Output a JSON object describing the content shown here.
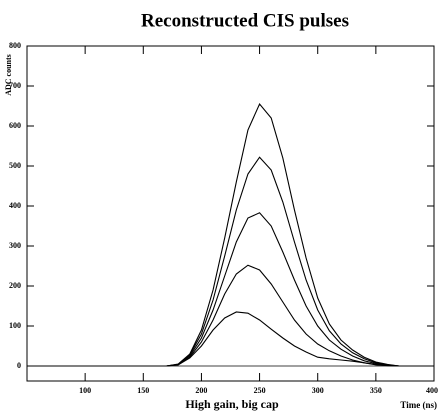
{
  "chart_data": {
    "type": "line",
    "title": "Reconstructed CIS pulses",
    "ylabel": "ADC counts",
    "xlabel": "High gain, big cap",
    "xlabel_right": "Time (ns)",
    "x": [
      50,
      60,
      70,
      80,
      90,
      100,
      110,
      120,
      130,
      140,
      150,
      160,
      170,
      180,
      190,
      200,
      210,
      220,
      230,
      240,
      250,
      260,
      270,
      280,
      290,
      300,
      310,
      320,
      330,
      340,
      350,
      360,
      370,
      380,
      390,
      400
    ],
    "series": [
      {
        "color": "#000000",
        "values": [
          0,
          0,
          0,
          0,
          0,
          0,
          0,
          0,
          0,
          0,
          0,
          0,
          0,
          5,
          30,
          90,
          190,
          320,
          460,
          590,
          655,
          620,
          520,
          390,
          270,
          170,
          105,
          65,
          40,
          22,
          10,
          4,
          0,
          0,
          0,
          0
        ]
      },
      {
        "color": "#000000",
        "values": [
          0,
          0,
          0,
          0,
          0,
          0,
          0,
          0,
          0,
          0,
          0,
          0,
          0,
          4,
          28,
          80,
          165,
          275,
          390,
          480,
          522,
          490,
          410,
          310,
          215,
          140,
          88,
          55,
          33,
          18,
          8,
          3,
          0,
          0,
          0,
          0
        ]
      },
      {
        "color": "#000000",
        "values": [
          0,
          0,
          0,
          0,
          0,
          0,
          0,
          0,
          0,
          0,
          0,
          0,
          0,
          4,
          25,
          70,
          140,
          225,
          310,
          370,
          383,
          350,
          285,
          215,
          150,
          100,
          65,
          42,
          25,
          13,
          6,
          2,
          0,
          0,
          0,
          0
        ]
      },
      {
        "color": "#000000",
        "values": [
          0,
          0,
          0,
          0,
          0,
          0,
          0,
          0,
          0,
          0,
          0,
          0,
          0,
          3,
          22,
          60,
          115,
          180,
          230,
          252,
          240,
          205,
          160,
          115,
          80,
          55,
          38,
          25,
          15,
          8,
          4,
          1,
          0,
          0,
          0,
          0
        ]
      },
      {
        "color": "#000000",
        "values": [
          0,
          0,
          0,
          0,
          0,
          0,
          0,
          0,
          0,
          0,
          0,
          0,
          0,
          3,
          20,
          50,
          90,
          120,
          135,
          132,
          115,
          92,
          70,
          50,
          35,
          22,
          18,
          15,
          12,
          8,
          3,
          1,
          0,
          0,
          0,
          0
        ]
      }
    ],
    "xlim": [
      50,
      400
    ],
    "ylim": [
      -37.5,
      800
    ],
    "xticks": [
      100,
      150,
      200,
      250,
      300,
      350,
      400
    ],
    "yticks": [
      0,
      100,
      200,
      300,
      400,
      500,
      600,
      700,
      800
    ],
    "zero_line": true
  }
}
